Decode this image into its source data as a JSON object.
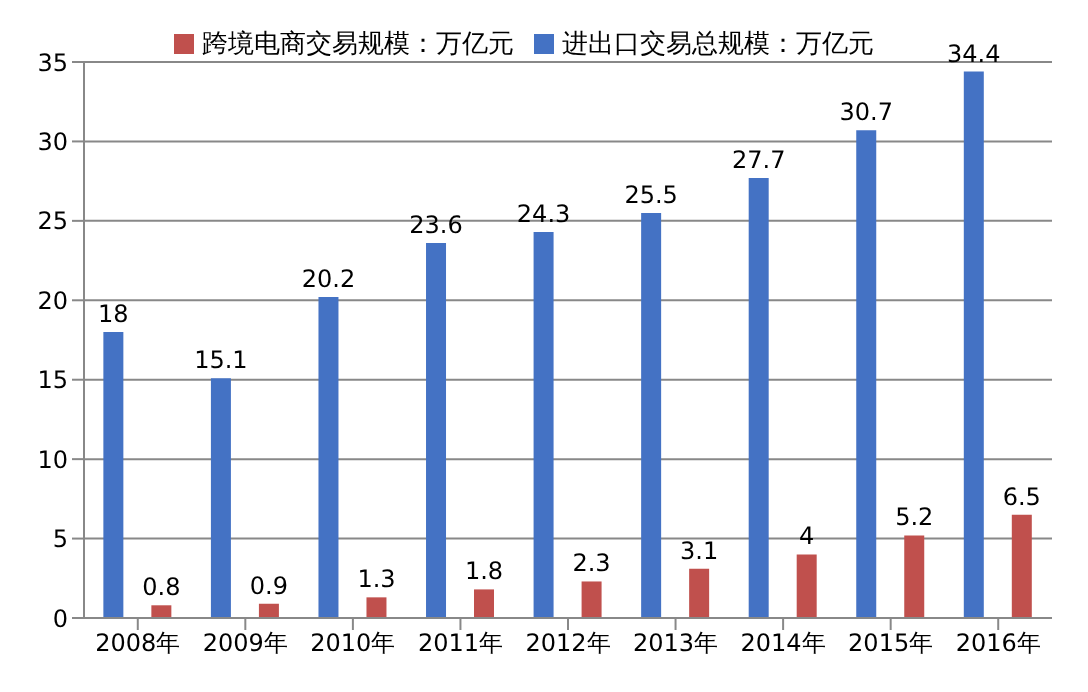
{
  "chart_data": {
    "type": "bar",
    "categories": [
      "2008年",
      "2009年",
      "2010年",
      "2011年",
      "2012年",
      "2013年",
      "2014年",
      "2015年",
      "2016年"
    ],
    "series": [
      {
        "name": "进出口交易总规模：万亿元",
        "color": "#4472c4",
        "values": [
          18,
          15.1,
          20.2,
          23.6,
          24.3,
          25.5,
          27.7,
          30.7,
          34.4
        ]
      },
      {
        "name": "跨境电商交易规模：万亿元",
        "color": "#c0504d",
        "values": [
          0.8,
          0.9,
          1.3,
          1.8,
          2.3,
          3.1,
          4,
          5.2,
          6.5
        ]
      }
    ],
    "ylim": [
      0,
      35
    ],
    "yticks": [
      0,
      5,
      10,
      15,
      20,
      25,
      30,
      35
    ],
    "grid": "y",
    "legend": "top",
    "data_labels": true
  }
}
